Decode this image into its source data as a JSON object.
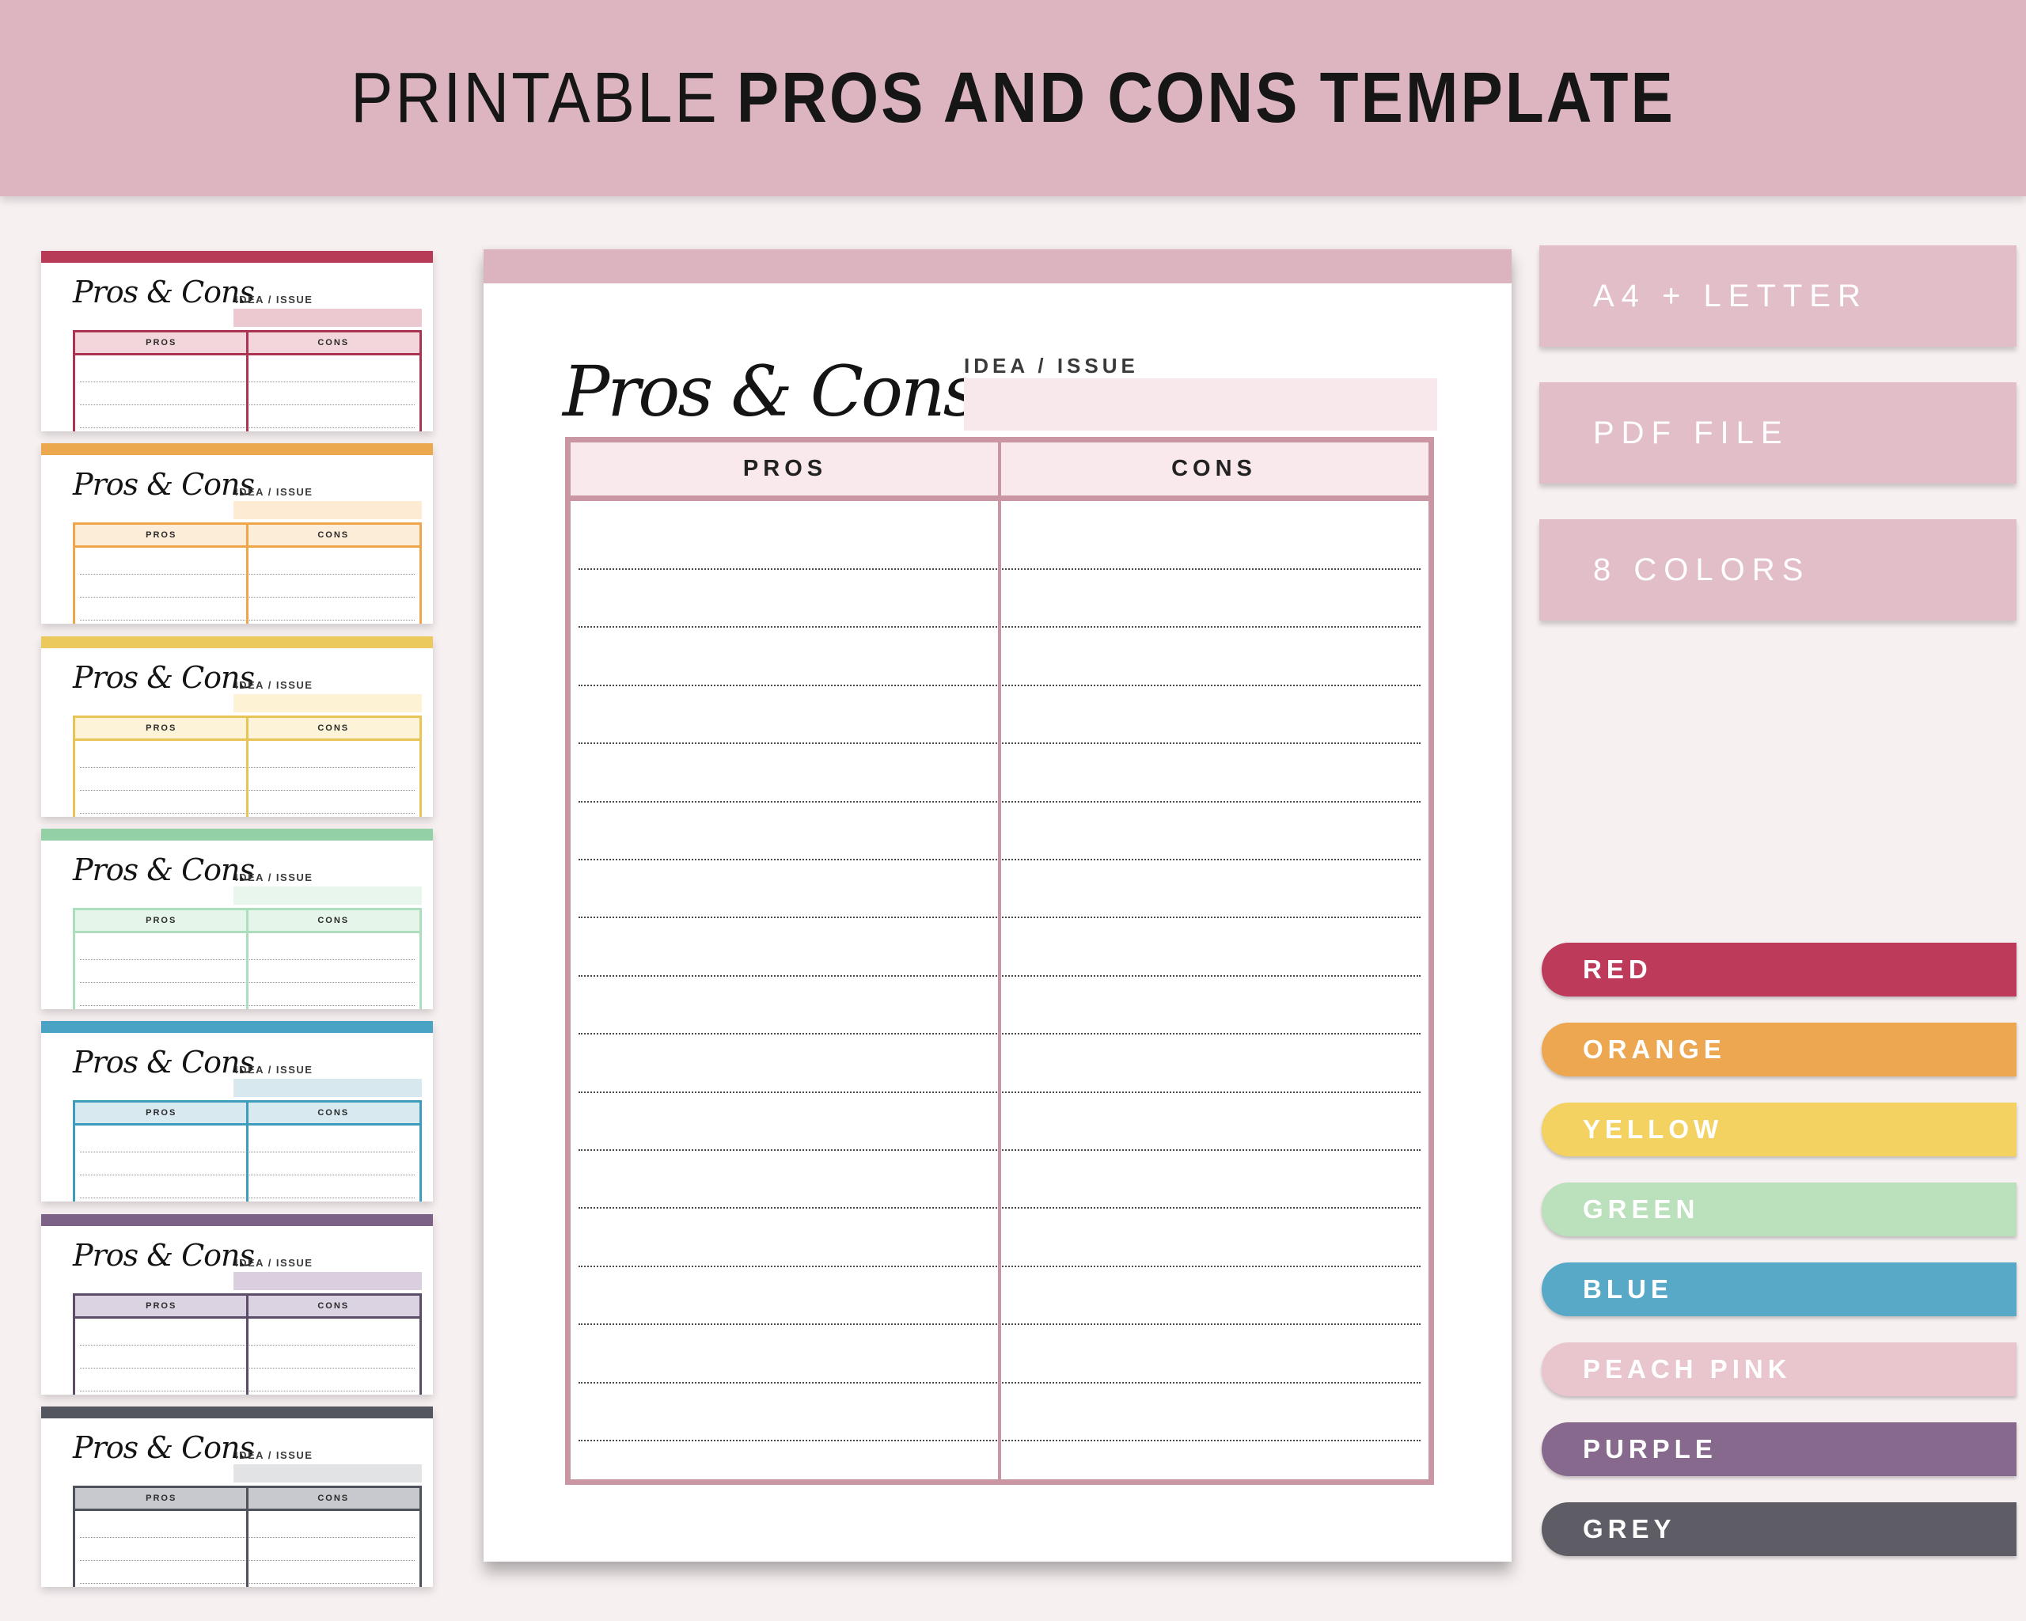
{
  "banner": {
    "title_light": "PRINTABLE",
    "title_bold": "PROS AND CONS TEMPLATE"
  },
  "template": {
    "script_title": "Pros & Cons",
    "idea_label": "IDEA / ISSUE",
    "pros_label": "PROS",
    "cons_label": "CONS",
    "main_row_count": 16,
    "thumb_row_count": 3
  },
  "ui": {
    "background": "#F7F0F1",
    "banner_bg": "#DDB5C0",
    "badge_bg": "#E2BEC9",
    "badge_text": "#FFFFFF",
    "title_color": "#161616"
  },
  "main_preview": {
    "topbar": "#DCB4BF",
    "border": "#CB96A3",
    "header_fill": "#F9E9EC",
    "idea_fill": "#F8E8EB"
  },
  "badges": [
    {
      "label": "A4 + LETTER"
    },
    {
      "label": "PDF FILE"
    },
    {
      "label": "8 COLORS"
    }
  ],
  "color_swatches": [
    {
      "label": "RED",
      "color": "#BE3A5B"
    },
    {
      "label": "ORANGE",
      "color": "#EDA751"
    },
    {
      "label": "YELLOW",
      "color": "#F3D262"
    },
    {
      "label": "GREEN",
      "color": "#BAE0BC"
    },
    {
      "label": "BLUE",
      "color": "#58A9C7"
    },
    {
      "label": "PEACH PINK",
      "color": "#E9C5CD"
    },
    {
      "label": "PURPLE",
      "color": "#87698D"
    },
    {
      "label": "GREY",
      "color": "#5E5C64"
    }
  ],
  "thumbnails": [
    {
      "name": "red",
      "bar_color": "#B73A57",
      "border_color": "#AB3453",
      "header_fill": "#F2D6DB",
      "idea_fill": "#ECC9D1"
    },
    {
      "name": "orange",
      "bar_color": "#ECA84E",
      "border_color": "#EFA64B",
      "header_fill": "#FCEDD8",
      "idea_fill": "#FDEBD3"
    },
    {
      "name": "yellow",
      "bar_color": "#ECC95C",
      "border_color": "#E8C355",
      "header_fill": "#FDF3D9",
      "idea_fill": "#FDF2D4"
    },
    {
      "name": "green",
      "bar_color": "#93D0A6",
      "border_color": "#ACDDBD",
      "header_fill": "#E6F5EA",
      "idea_fill": "#E9F6ED"
    },
    {
      "name": "blue",
      "bar_color": "#4AA3C4",
      "border_color": "#3E9CBC",
      "header_fill": "#D9E9F0",
      "idea_fill": "#D7E8EF"
    },
    {
      "name": "purple",
      "bar_color": "#7C6287",
      "border_color": "#5D4C68",
      "header_fill": "#DBD2E2",
      "idea_fill": "#D9CFDF"
    },
    {
      "name": "grey",
      "bar_color": "#53565F",
      "border_color": "#4E535B",
      "header_fill": "#C7C9CE",
      "idea_fill": "#E1E3E5"
    }
  ]
}
